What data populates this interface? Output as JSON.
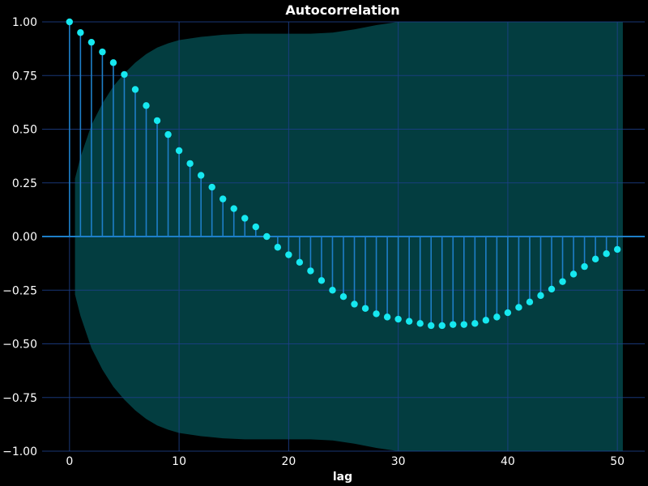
{
  "chart_data": {
    "type": "stem",
    "title": "Autocorrelation",
    "xlabel": "lag",
    "ylabel": "",
    "xlim": [
      -2.5,
      52.5
    ],
    "ylim": [
      -1.0,
      1.0
    ],
    "xticks": [
      0,
      10,
      20,
      30,
      40,
      50
    ],
    "xtick_labels": [
      "0",
      "10",
      "20",
      "30",
      "40",
      "50"
    ],
    "yticks": [
      -1.0,
      -0.75,
      -0.5,
      -0.25,
      0.0,
      0.25,
      0.5,
      0.75,
      1.0
    ],
    "ytick_labels": [
      "−1.00",
      "−0.75",
      "−0.50",
      "−0.25",
      "0.00",
      "0.25",
      "0.50",
      "0.75",
      "1.00"
    ],
    "grid": true,
    "series": [
      {
        "x": [
          0,
          1,
          2,
          3,
          4,
          5,
          6,
          7,
          8,
          9,
          10,
          11,
          12,
          13,
          14,
          15,
          16,
          17,
          18,
          19,
          20,
          21,
          22,
          23,
          24,
          25,
          26,
          27,
          28,
          29,
          30,
          31,
          32,
          33,
          34,
          35,
          36,
          37,
          38,
          39,
          40,
          41,
          42,
          43,
          44,
          45,
          46,
          47,
          48,
          49,
          50
        ],
        "values": [
          1.0,
          0.95,
          0.905,
          0.86,
          0.81,
          0.755,
          0.685,
          0.61,
          0.54,
          0.475,
          0.4,
          0.34,
          0.285,
          0.23,
          0.175,
          0.13,
          0.085,
          0.045,
          0.0,
          -0.05,
          -0.085,
          -0.12,
          -0.16,
          -0.205,
          -0.25,
          -0.28,
          -0.315,
          -0.335,
          -0.36,
          -0.375,
          -0.385,
          -0.395,
          -0.405,
          -0.415,
          -0.415,
          -0.41,
          -0.41,
          -0.405,
          -0.39,
          -0.375,
          -0.355,
          -0.33,
          -0.305,
          -0.275,
          -0.245,
          -0.21,
          -0.175,
          -0.14,
          -0.105,
          -0.08,
          -0.06
        ]
      }
    ],
    "confidence_band": {
      "x": [
        0.5,
        1,
        2,
        3,
        4,
        5,
        6,
        7,
        8,
        9,
        10,
        12,
        14,
        16,
        18,
        20,
        22,
        24,
        26,
        28,
        30,
        32,
        34,
        36,
        38,
        40,
        42,
        44,
        46,
        48,
        50,
        50.5
      ],
      "upper": [
        0.27,
        0.37,
        0.52,
        0.62,
        0.7,
        0.76,
        0.81,
        0.85,
        0.88,
        0.9,
        0.915,
        0.93,
        0.94,
        0.945,
        0.945,
        0.945,
        0.945,
        0.95,
        0.965,
        0.985,
        1.0,
        1.0,
        1.0,
        1.0,
        1.0,
        1.0,
        1.0,
        1.0,
        1.0,
        1.0,
        1.0,
        1.0
      ],
      "lower": [
        -0.27,
        -0.37,
        -0.52,
        -0.62,
        -0.7,
        -0.76,
        -0.81,
        -0.85,
        -0.88,
        -0.9,
        -0.915,
        -0.93,
        -0.94,
        -0.945,
        -0.945,
        -0.945,
        -0.945,
        -0.95,
        -0.965,
        -0.985,
        -1.0,
        -1.0,
        -1.0,
        -1.0,
        -1.0,
        -1.0,
        -1.0,
        -1.0,
        -1.0,
        -1.0,
        -1.0,
        -1.0
      ]
    },
    "colors": {
      "background": "#000000",
      "band_fill": "#033d40",
      "stem": "#1e7fc8",
      "marker": "#16e8f0",
      "grid": "#1d3f8a",
      "zero_line": "#1e7fc8",
      "text": "#ffffff"
    }
  }
}
